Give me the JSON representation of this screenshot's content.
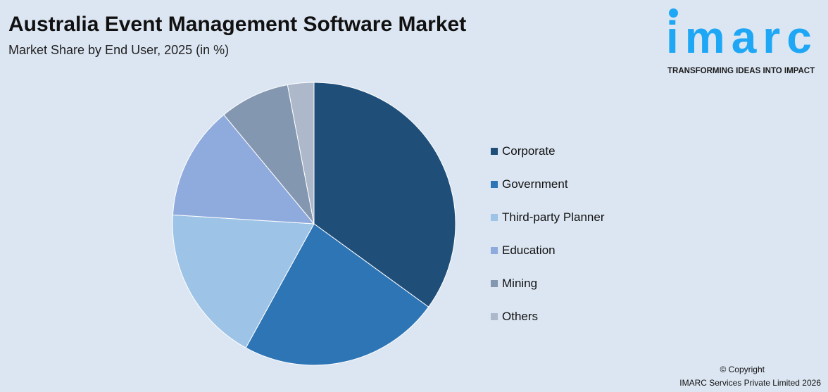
{
  "title": "Australia Event Management Software Market",
  "subtitle": "Market Share by End User, 2025 (in %)",
  "logo": {
    "word": "imarc",
    "tagline": "TRANSFORMING IDEAS INTO IMPACT",
    "color": "#1ea7f5"
  },
  "copyright": {
    "line1": "© Copyright",
    "line2": "IMARC Services Private Limited 2026"
  },
  "chart_data": {
    "type": "pie",
    "title": "Australia Event Management Software Market",
    "subtitle": "Market Share by End User, 2025 (in %)",
    "legend_placement": "right",
    "start_angle": "12 o'clock, clockwise",
    "categories": [
      "Corporate",
      "Government",
      "Third-party Planner",
      "Education",
      "Mining",
      "Others"
    ],
    "values": [
      35,
      23,
      18,
      13,
      8,
      3
    ],
    "colors": [
      "#1f4e79",
      "#2e75b6",
      "#9dc3e6",
      "#8faadc",
      "#8497b0",
      "#adb9ca"
    ]
  }
}
